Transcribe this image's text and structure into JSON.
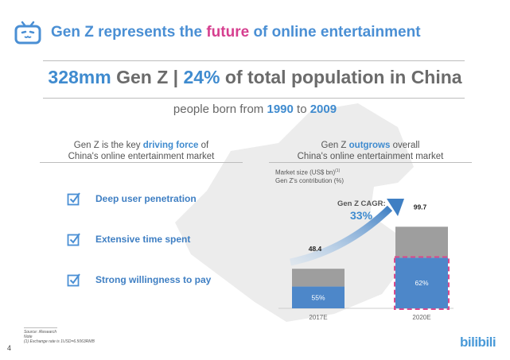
{
  "header": {
    "title_pre": "Gen Z represents the ",
    "title_highlight": "future",
    "title_post": " of online entertainment",
    "logo_icon": "tv-icon",
    "brand_color": "#4a8fd4",
    "highlight_color": "#d63f8f"
  },
  "headline": {
    "num": "328mm",
    "mid": " Gen Z | ",
    "pct": "24%",
    "rest": " of total population in China"
  },
  "subheadline": {
    "pre": "people born from ",
    "from": "1990",
    "mid": " to ",
    "to": "2009"
  },
  "left_col": {
    "head_line1_pre": "Gen Z is the key ",
    "head_line1_bold": "driving force",
    "head_line1_post": " of",
    "head_line2": "China's online entertainment market",
    "items": [
      {
        "label": "Deep user penetration",
        "icon": "checkbox-icon"
      },
      {
        "label": "Extensive time spent",
        "icon": "checkbox-icon"
      },
      {
        "label": "Strong willingness to pay",
        "icon": "checkbox-icon"
      }
    ]
  },
  "right_col": {
    "head_line1_pre": "Gen Z ",
    "head_line1_bold": "outgrows",
    "head_line1_post": " overall",
    "head_line2": "China's online entertainment market"
  },
  "chart_data": {
    "type": "bar",
    "legend_line1": "Market size (US$ bn)",
    "legend_line1_sup": "(1)",
    "legend_line2": "Gen Z's contribution (%)",
    "categories": [
      "2017E",
      "2020E"
    ],
    "totals": [
      48.4,
      99.7
    ],
    "total_labels": [
      "48.4",
      "99.7"
    ],
    "genz_share_pct": [
      55,
      62
    ],
    "genz_share_labels": [
      "55%",
      "62%"
    ],
    "cagr_label": "Gen Z CAGR:",
    "cagr_value": "33%",
    "colors": {
      "genz": "#4d87c9",
      "other": "#9e9e9e",
      "highlight": "#d94a8c"
    }
  },
  "footer": {
    "source": "Source: iResearch",
    "note_label": "Note",
    "note": "(1)     Exchange rate is 1USD=6.5063RMB",
    "page": "4",
    "brand": "bilibili"
  }
}
